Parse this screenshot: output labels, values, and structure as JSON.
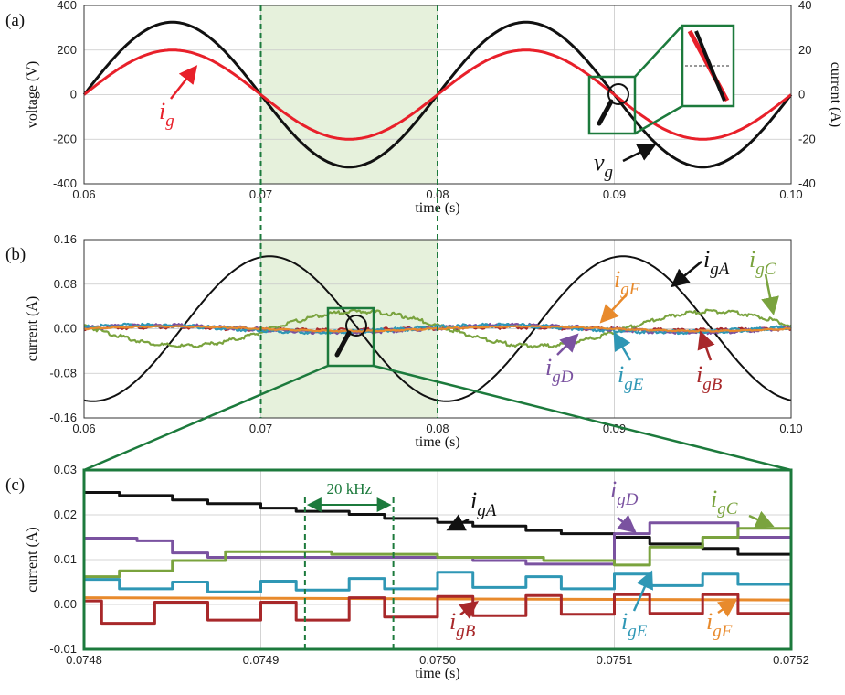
{
  "chart_data": [
    {
      "panel": "(a)",
      "type": "line",
      "xlabel": "time (s)",
      "ylabel": "voltage (V)",
      "y2label": "current (A)",
      "xlim": [
        0.06,
        0.1
      ],
      "ylim": [
        -400,
        400
      ],
      "y2lim": [
        -40,
        40
      ],
      "x_ticks": [
        "0.06",
        "0.07",
        "0.08",
        "0.09",
        "0.10"
      ],
      "y_ticks": [
        "400",
        "200",
        "0",
        "-200",
        "-400"
      ],
      "y2_ticks": [
        "40",
        "20",
        "0",
        "-20",
        "-40"
      ],
      "highlight_x": [
        0.07,
        0.08
      ],
      "series": [
        {
          "name": "v",
          "sub": "g",
          "axis": "left",
          "color": "#111111",
          "amplitude": 325,
          "frequency_hz": 50,
          "x": [
            0.06,
            0.065,
            0.07,
            0.075,
            0.08,
            0.085,
            0.09,
            0.095,
            0.1
          ],
          "values": [
            0,
            325,
            0,
            -325,
            0,
            325,
            0,
            -325,
            0
          ]
        },
        {
          "name": "i",
          "sub": "g",
          "axis": "right",
          "color": "#e8202a",
          "amplitude": 20,
          "frequency_hz": 50,
          "x": [
            0.06,
            0.065,
            0.07,
            0.075,
            0.08,
            0.085,
            0.09,
            0.095,
            0.1
          ],
          "values": [
            0,
            20,
            0,
            -20,
            0,
            20,
            0,
            -20,
            0
          ]
        }
      ]
    },
    {
      "panel": "(b)",
      "type": "line",
      "xlabel": "time (s)",
      "ylabel": "current (A)",
      "xlim": [
        0.06,
        0.1
      ],
      "ylim": [
        -0.16,
        0.16
      ],
      "x_ticks": [
        "0.06",
        "0.07",
        "0.08",
        "0.09",
        "0.10"
      ],
      "y_ticks": [
        "0.16",
        "0.08",
        "0.00",
        "-0.08",
        "-0.16"
      ],
      "highlight_x": [
        0.07,
        0.08
      ],
      "zoom_window_x": [
        0.0748,
        0.0752
      ],
      "series": [
        {
          "name": "i",
          "sub": "gA",
          "color": "#111111",
          "amplitude": 0.13,
          "x": [
            0.06,
            0.0705,
            0.0755,
            0.0805,
            0.0905,
            0.1
          ],
          "values": [
            -0.127,
            0.13,
            0.0,
            -0.13,
            0.13,
            -0.127
          ]
        },
        {
          "name": "i",
          "sub": "gB",
          "color": "#a8282a",
          "amplitude": 0.003
        },
        {
          "name": "i",
          "sub": "gC",
          "color": "#7aa33e",
          "amplitude": 0.031
        },
        {
          "name": "i",
          "sub": "gD",
          "color": "#7a52a0",
          "amplitude": 0.006
        },
        {
          "name": "i",
          "sub": "gE",
          "color": "#2f97b5",
          "amplitude": 0.006
        },
        {
          "name": "i",
          "sub": "gF",
          "color": "#e88a2c",
          "amplitude": 0.004
        }
      ]
    },
    {
      "panel": "(c)",
      "type": "line",
      "xlabel": "time (s)",
      "ylabel": "current (A)",
      "xlim": [
        0.0748,
        0.0752
      ],
      "ylim": [
        -0.01,
        0.03
      ],
      "x_ticks": [
        "0.0748",
        "0.0749",
        "0.0750",
        "0.0751",
        "0.0752"
      ],
      "y_ticks": [
        "0.03",
        "0.02",
        "0.01",
        "0.00",
        "-0.01"
      ],
      "period_marker": {
        "label": "20 kHz",
        "x": [
          0.074925,
          0.074975
        ]
      },
      "series": [
        {
          "name": "i",
          "sub": "gA",
          "color": "#111111",
          "step_edges": [
            0.0748,
            0.07482,
            0.07485,
            0.07487,
            0.0749,
            0.07492,
            0.07495,
            0.07497,
            0.075,
            0.07502,
            0.07505,
            0.07507,
            0.0751,
            0.07512,
            0.07515,
            0.07517,
            0.0752
          ],
          "values": [
            0.025,
            0.0243,
            0.0233,
            0.0225,
            0.0215,
            0.0208,
            0.0201,
            0.0192,
            0.0183,
            0.0175,
            0.0165,
            0.0158,
            0.015,
            0.0135,
            0.0125,
            0.0112,
            0.0103
          ]
        },
        {
          "name": "i",
          "sub": "gD",
          "color": "#7a52a0",
          "step_edges": [
            0.0748,
            0.07483,
            0.07485,
            0.07487,
            0.075,
            0.07502,
            0.07505,
            0.0751,
            0.07512,
            0.07517,
            0.0752
          ],
          "values": [
            0.0148,
            0.0142,
            0.0115,
            0.0105,
            0.0105,
            0.0098,
            0.009,
            0.0158,
            0.0182,
            0.015,
            0.014
          ]
        },
        {
          "name": "i",
          "sub": "gC",
          "color": "#7aa33e",
          "step_edges": [
            0.0748,
            0.07482,
            0.07485,
            0.07488,
            0.07494,
            0.075,
            0.07506,
            0.0751,
            0.07512,
            0.07515,
            0.07517,
            0.0752
          ],
          "values": [
            0.0062,
            0.0075,
            0.0098,
            0.0118,
            0.0112,
            0.0105,
            0.0098,
            0.0088,
            0.0128,
            0.015,
            0.017,
            0.017
          ]
        },
        {
          "name": "i",
          "sub": "gE",
          "color": "#2f97b5",
          "step_edges": [
            0.0748,
            0.07482,
            0.07485,
            0.07487,
            0.0749,
            0.07492,
            0.07495,
            0.07497,
            0.075,
            0.07502,
            0.07505,
            0.07507,
            0.0751,
            0.07512,
            0.07515,
            0.07517,
            0.0752
          ],
          "values": [
            0.0056,
            0.0035,
            0.005,
            0.0028,
            0.0052,
            0.0032,
            0.0058,
            0.0035,
            0.0072,
            0.0038,
            0.0062,
            0.0035,
            0.0068,
            0.0042,
            0.0068,
            0.0045,
            0.0068
          ]
        },
        {
          "name": "i",
          "sub": "gF",
          "color": "#e88a2c",
          "flat": 0.0015
        },
        {
          "name": "i",
          "sub": "gB",
          "color": "#a8282a",
          "step_edges": [
            0.0748,
            0.07481,
            0.07484,
            0.07487,
            0.0749,
            0.07492,
            0.07495,
            0.07497,
            0.075,
            0.07502,
            0.07505,
            0.07507,
            0.0751,
            0.07512,
            0.07515,
            0.07517,
            0.0752
          ],
          "values": [
            0.0008,
            -0.0042,
            0.0005,
            -0.0035,
            0.0005,
            -0.0035,
            0.0015,
            -0.0028,
            0.0018,
            -0.0025,
            0.002,
            -0.0022,
            0.0022,
            -0.002,
            0.0022,
            -0.002,
            -0.002
          ]
        }
      ]
    }
  ]
}
